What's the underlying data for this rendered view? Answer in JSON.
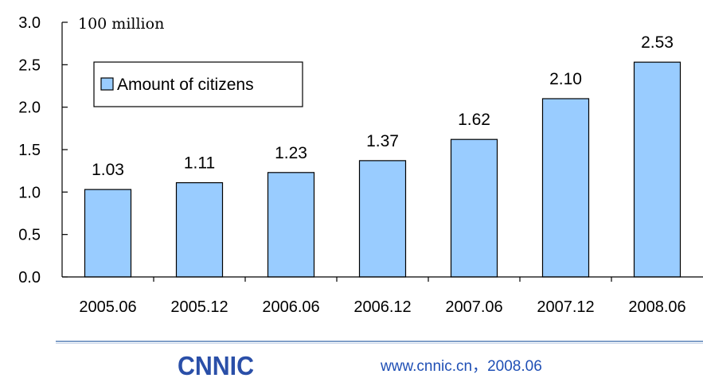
{
  "chart_data": {
    "type": "bar",
    "unit_label": "100 million",
    "categories": [
      "2005.06",
      "2005.12",
      "2006.06",
      "2006.12",
      "2007.06",
      "2007.12",
      "2008.06"
    ],
    "series": [
      {
        "name": "Amount of citizens",
        "values": [
          1.03,
          1.11,
          1.23,
          1.37,
          1.62,
          2.1,
          2.53
        ],
        "color": "#99ccff"
      }
    ],
    "value_labels": [
      "1.03",
      "1.11",
      "1.23",
      "1.37",
      "1.62",
      "2.10",
      "2.53"
    ],
    "y_ticks": [
      "0.0",
      "0.5",
      "1.0",
      "1.5",
      "2.0",
      "2.5",
      "3.0"
    ],
    "ylim": [
      0,
      3.0
    ],
    "grid": false,
    "legend_position": "top-left"
  },
  "footer": {
    "logo_text": "CNNIC",
    "source_text": "www.cnnic.cn，2008.06",
    "logo_color": "#2a4fa8",
    "line_color": "#7f9fc8"
  }
}
